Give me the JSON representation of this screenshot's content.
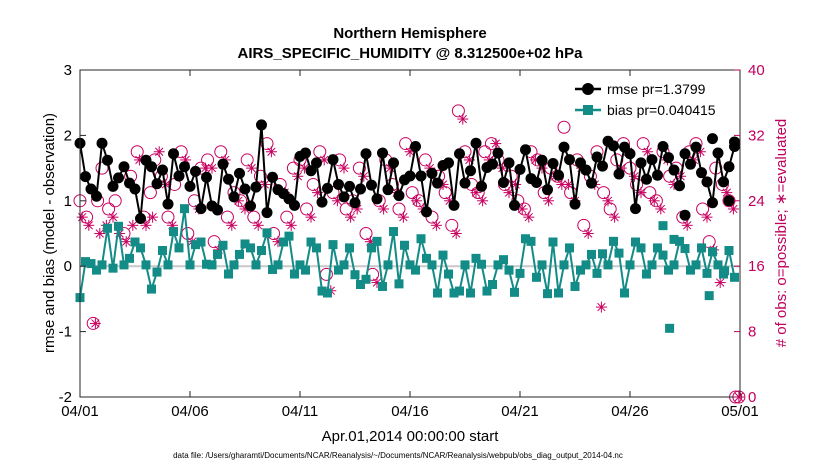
{
  "chart_data": {
    "type": "line",
    "title": "Northern Hemisphere",
    "subtitle": "AIRS_SPECIFIC_HUMIDITY @ 8.312500e+02 hPa",
    "xlabel": "Apr.01,2014 00:00:00 start",
    "ylabel": "rmse and bias (model - observation)",
    "ylabel_right": "# of obs: o=possible; ∗=evaluated",
    "xlim": [
      0,
      30
    ],
    "ylim": [
      -2,
      3
    ],
    "ylim_right": [
      0,
      40
    ],
    "xticks": [
      0,
      5,
      10,
      15,
      20,
      25,
      30
    ],
    "xtick_labels": [
      "04/01",
      "04/06",
      "04/11",
      "04/16",
      "04/21",
      "04/26",
      "05/01"
    ],
    "yticks": [
      -2,
      -1,
      0,
      1,
      2,
      3
    ],
    "yticks_right": [
      0,
      8,
      16,
      24,
      32,
      40
    ],
    "zero_line": 0,
    "footnote": "data file: /Users/gharamti/Documents/NCAR/Reanalysis/~/Documents/NCAR/Reanalysis/webpub/obs_diag_output_2014-04.nc",
    "colors": {
      "rmse": "#000000",
      "bias": "#138b87",
      "obs": "#c8005f",
      "zero": "#c8c8c8"
    },
    "series": [
      {
        "name": "rmse",
        "legend": "rmse pr=1.3799",
        "axis": "left",
        "x": [
          0.0,
          0.25,
          0.5,
          0.75,
          1.0,
          1.25,
          1.5,
          1.75,
          2.0,
          2.25,
          2.5,
          2.75,
          3.0,
          3.25,
          3.5,
          3.75,
          4.0,
          4.25,
          4.5,
          4.75,
          5.0,
          5.25,
          5.5,
          5.75,
          6.0,
          6.25,
          6.5,
          6.75,
          7.0,
          7.25,
          7.5,
          7.75,
          8.0,
          8.25,
          8.5,
          8.75,
          9.0,
          9.25,
          9.5,
          9.75,
          10.0,
          10.25,
          10.5,
          10.75,
          11.0,
          11.25,
          11.5,
          11.75,
          12.0,
          12.25,
          12.5,
          12.75,
          13.0,
          13.25,
          13.5,
          13.75,
          14.0,
          14.25,
          14.5,
          14.75,
          15.0,
          15.25,
          15.5,
          15.75,
          16.0,
          16.25,
          16.5,
          16.75,
          17.0,
          17.25,
          17.5,
          17.75,
          18.0,
          18.25,
          18.5,
          18.75,
          19.0,
          19.25,
          19.5,
          19.75,
          20.0,
          20.25,
          20.5,
          20.75,
          21.0,
          21.25,
          21.5,
          21.75,
          22.0,
          22.25,
          22.5,
          22.75,
          23.0,
          23.25,
          23.5,
          23.75,
          24.0,
          24.25,
          24.5,
          24.75,
          25.0,
          25.25,
          25.5,
          25.75,
          26.0,
          26.25,
          26.5,
          26.75,
          27.0,
          27.25,
          27.5,
          27.75,
          28.0,
          28.25,
          28.5,
          28.75,
          29.0,
          29.25,
          29.5,
          29.75
        ],
        "values": [
          1.88,
          1.37,
          1.18,
          1.07,
          1.88,
          1.62,
          1.22,
          1.35,
          1.52,
          1.27,
          1.18,
          0.73,
          1.62,
          1.52,
          1.26,
          1.47,
          0.95,
          1.72,
          1.38,
          1.52,
          1.22,
          1.45,
          0.88,
          1.36,
          0.92,
          0.86,
          1.56,
          1.33,
          1.06,
          1.42,
          1.18,
          0.92,
          1.21,
          2.16,
          0.82,
          1.36,
          1.17,
          1.11,
          1.03,
          0.93,
          1.68,
          1.73,
          1.46,
          1.58,
          0.98,
          1.19,
          1.63,
          1.25,
          1.06,
          1.22,
          0.97,
          1.18,
          1.72,
          1.24,
          1.03,
          1.73,
          1.17,
          1.58,
          1.08,
          1.32,
          1.38,
          1.83,
          1.38,
          0.83,
          1.42,
          1.27,
          1.54,
          1.58,
          0.93,
          1.72,
          1.27,
          1.46,
          1.88,
          1.22,
          1.51,
          1.56,
          1.73,
          1.28,
          1.58,
          0.93,
          1.48,
          1.78,
          1.34,
          1.28,
          1.62,
          1.17,
          1.57,
          1.39,
          1.82,
          1.63,
          0.95,
          1.58,
          1.47,
          1.27,
          1.67,
          1.53,
          1.91,
          1.84,
          1.41,
          1.82,
          1.72,
          0.88,
          1.58,
          1.33,
          1.63,
          1.39,
          1.83,
          1.66,
          1.47,
          1.23,
          1.72,
          1.56,
          1.82,
          1.43,
          1.29,
          0.97,
          1.73,
          1.29,
          1.52,
          1.83
        ],
        "extra_points": [
          [
            27.5,
            0.78
          ],
          [
            29.5,
            1.0
          ],
          [
            29.75,
            1.9
          ],
          [
            28.75,
            1.95
          ]
        ]
      },
      {
        "name": "bias",
        "legend": "bias pr=0.040415",
        "axis": "left",
        "x": [
          0.0,
          0.25,
          0.5,
          0.75,
          1.0,
          1.25,
          1.5,
          1.75,
          2.0,
          2.25,
          2.5,
          2.75,
          3.0,
          3.25,
          3.5,
          3.75,
          4.0,
          4.25,
          4.5,
          4.75,
          5.0,
          5.25,
          5.5,
          5.75,
          6.0,
          6.25,
          6.5,
          6.75,
          7.0,
          7.25,
          7.5,
          7.75,
          8.0,
          8.25,
          8.5,
          8.75,
          9.0,
          9.25,
          9.5,
          9.75,
          10.0,
          10.25,
          10.5,
          10.75,
          11.0,
          11.25,
          11.5,
          11.75,
          12.0,
          12.25,
          12.5,
          12.75,
          13.0,
          13.25,
          13.5,
          13.75,
          14.0,
          14.25,
          14.5,
          14.75,
          15.0,
          15.25,
          15.5,
          15.75,
          16.0,
          16.25,
          16.5,
          16.75,
          17.0,
          17.25,
          17.5,
          17.75,
          18.0,
          18.25,
          18.5,
          18.75,
          19.0,
          19.25,
          19.5,
          19.75,
          20.0,
          20.25,
          20.5,
          20.75,
          21.0,
          21.25,
          21.5,
          21.75,
          22.0,
          22.25,
          22.5,
          22.75,
          23.0,
          23.25,
          23.5,
          23.75,
          24.0,
          24.25,
          24.5,
          24.75,
          25.0,
          25.25,
          25.5,
          25.75,
          26.0,
          26.25,
          26.5,
          26.75,
          27.0,
          27.25,
          27.5,
          27.75,
          28.0,
          28.25,
          28.5,
          28.75,
          29.0,
          29.25,
          29.5,
          29.75
        ],
        "values": [
          -0.48,
          0.07,
          0.04,
          -0.06,
          0.02,
          0.58,
          -0.03,
          0.61,
          0.02,
          0.12,
          0.37,
          0.28,
          0.02,
          -0.35,
          -0.09,
          0.24,
          0.02,
          0.53,
          0.28,
          0.88,
          0.02,
          0.33,
          0.37,
          0.03,
          0.02,
          0.18,
          0.32,
          -0.12,
          0.02,
          0.18,
          0.34,
          0.28,
          0.02,
          0.24,
          0.51,
          -0.05,
          0.02,
          0.37,
          0.46,
          -0.12,
          0.02,
          -0.06,
          0.37,
          0.28,
          -0.38,
          -0.41,
          0.33,
          -0.06,
          0.02,
          0.28,
          -0.13,
          -0.28,
          -0.2,
          0.28,
          0.38,
          -0.31,
          0.02,
          0.53,
          -0.27,
          0.32,
          0.02,
          -0.06,
          0.42,
          0.12,
          0.02,
          -0.41,
          0.17,
          -0.12,
          -0.41,
          -0.38,
          0.02,
          -0.41,
          0.12,
          0.03,
          -0.38,
          -0.28,
          0.02,
          0.1,
          -0.06,
          -0.4,
          -0.11,
          0.42,
          0.38,
          -0.17,
          0.02,
          -0.42,
          0.37,
          -0.41,
          0.02,
          0.28,
          -0.31,
          -0.06,
          0.02,
          0.18,
          -0.11,
          0.19,
          0.02,
          0.38,
          0.2,
          -0.41,
          0.02,
          0.37,
          0.28,
          -0.12,
          0.02,
          0.28,
          0.17,
          -0.06,
          0.02,
          0.38,
          0.27,
          -0.06,
          0.02,
          0.28,
          -0.11,
          0.22,
          0.02,
          -0.12,
          0.24,
          -0.17
        ],
        "extra_points": [
          [
            26.8,
            -0.95
          ],
          [
            26.5,
            0.62
          ],
          [
            27.0,
            0.41
          ],
          [
            29.3,
            -0.07
          ],
          [
            28.6,
            -0.45
          ]
        ]
      },
      {
        "name": "possible",
        "marker": "circle",
        "axis": "right",
        "x": [
          0.0,
          0.3,
          0.6,
          0.8,
          1.0,
          1.3,
          1.6,
          2.0,
          2.3,
          2.6,
          2.9,
          3.2,
          3.4,
          3.7,
          4.0,
          4.3,
          4.6,
          4.9,
          5.2,
          5.5,
          5.8,
          6.1,
          6.4,
          6.7,
          7.0,
          7.3,
          7.6,
          7.9,
          8.2,
          8.5,
          8.8,
          9.1,
          9.4,
          9.7,
          10.0,
          10.3,
          10.6,
          10.9,
          11.2,
          11.5,
          11.8,
          12.1,
          12.4,
          12.7,
          13.0,
          13.3,
          13.6,
          13.9,
          14.2,
          14.5,
          14.8,
          15.1,
          15.4,
          15.7,
          16.0,
          16.3,
          16.6,
          16.9,
          17.2,
          17.5,
          17.8,
          18.1,
          18.4,
          18.7,
          19.0,
          19.3,
          19.6,
          19.9,
          20.2,
          20.5,
          20.8,
          21.1,
          21.4,
          21.7,
          22.0,
          22.3,
          22.6,
          22.9,
          23.2,
          23.5,
          23.8,
          24.1,
          24.4,
          24.7,
          25.0,
          25.3,
          25.6,
          25.9,
          26.2,
          26.5,
          26.8,
          27.1,
          27.4,
          27.7,
          28.0,
          28.3,
          28.6,
          28.9,
          29.2,
          29.5,
          29.8
        ],
        "values": [
          24,
          22,
          9,
          24,
          28,
          23,
          24,
          20,
          27,
          30,
          22,
          25,
          29,
          27,
          22,
          26,
          30,
          20,
          24,
          28,
          29,
          19,
          30,
          22,
          25,
          24,
          29,
          22,
          27,
          31,
          20,
          26,
          22,
          28,
          29,
          23,
          26,
          30,
          15,
          25,
          29,
          23,
          24,
          28,
          20,
          15,
          24,
          29,
          26,
          23,
          31,
          25,
          24,
          29,
          22,
          27,
          25,
          21,
          35,
          30,
          26,
          25,
          30,
          31,
          29,
          26,
          27,
          24,
          23,
          30,
          29,
          25,
          28,
          27,
          33,
          25,
          29,
          21,
          27,
          30,
          25,
          23,
          29,
          31,
          28,
          26,
          31,
          25,
          24,
          30,
          27,
          28,
          22,
          30,
          31,
          23,
          19,
          28,
          26,
          24,
          0
        ],
        "extra_points": [
          [
            29.95,
            0
          ]
        ]
      },
      {
        "name": "evaluated",
        "marker": "star",
        "axis": "right",
        "x": [
          0.1,
          0.4,
          0.7,
          0.9,
          1.2,
          1.5,
          1.8,
          2.1,
          2.4,
          2.7,
          3.0,
          3.3,
          3.6,
          3.9,
          4.2,
          4.5,
          4.8,
          5.1,
          5.4,
          5.7,
          6.0,
          6.3,
          6.6,
          6.9,
          7.2,
          7.5,
          7.8,
          8.1,
          8.4,
          8.7,
          9.0,
          9.3,
          9.6,
          9.9,
          10.2,
          10.5,
          10.8,
          11.1,
          11.4,
          11.7,
          12.0,
          12.3,
          12.6,
          12.9,
          13.2,
          13.5,
          13.8,
          14.1,
          14.4,
          14.7,
          15.0,
          15.3,
          15.6,
          15.9,
          16.2,
          16.5,
          16.8,
          17.1,
          17.4,
          17.7,
          18.0,
          18.3,
          18.6,
          18.9,
          19.2,
          19.5,
          19.8,
          20.1,
          20.4,
          20.7,
          21.0,
          21.3,
          21.6,
          21.9,
          22.2,
          22.5,
          22.8,
          23.1,
          23.4,
          23.7,
          24.0,
          24.3,
          24.6,
          24.9,
          25.2,
          25.5,
          25.8,
          26.1,
          26.4,
          26.7,
          27.0,
          27.3,
          27.6,
          27.9,
          28.2,
          28.5,
          28.8,
          29.1,
          29.4,
          29.7
        ],
        "values": [
          22,
          21,
          9,
          20,
          21,
          22,
          20,
          19,
          21,
          29,
          21,
          22,
          30,
          26,
          21,
          27,
          29,
          19,
          23,
          28,
          28,
          18,
          29,
          21,
          24,
          23,
          28,
          21,
          26,
          30,
          19,
          25,
          21,
          27,
          28,
          22,
          25,
          29,
          13,
          24,
          28,
          22,
          23,
          27,
          19,
          14,
          23,
          28,
          25,
          22,
          30,
          24,
          23,
          28,
          21,
          26,
          24,
          20,
          34,
          29,
          25,
          24,
          29,
          31,
          28,
          25,
          26,
          23,
          22,
          29,
          28,
          24,
          27,
          26,
          26,
          24,
          28,
          20,
          26,
          11,
          24,
          22,
          28,
          30,
          27,
          25,
          30,
          24,
          23,
          29,
          26,
          27,
          21,
          29,
          30,
          22,
          18,
          14,
          25,
          23
        ],
        "extra_points": [
          [
            29.95,
            0
          ]
        ]
      }
    ]
  }
}
